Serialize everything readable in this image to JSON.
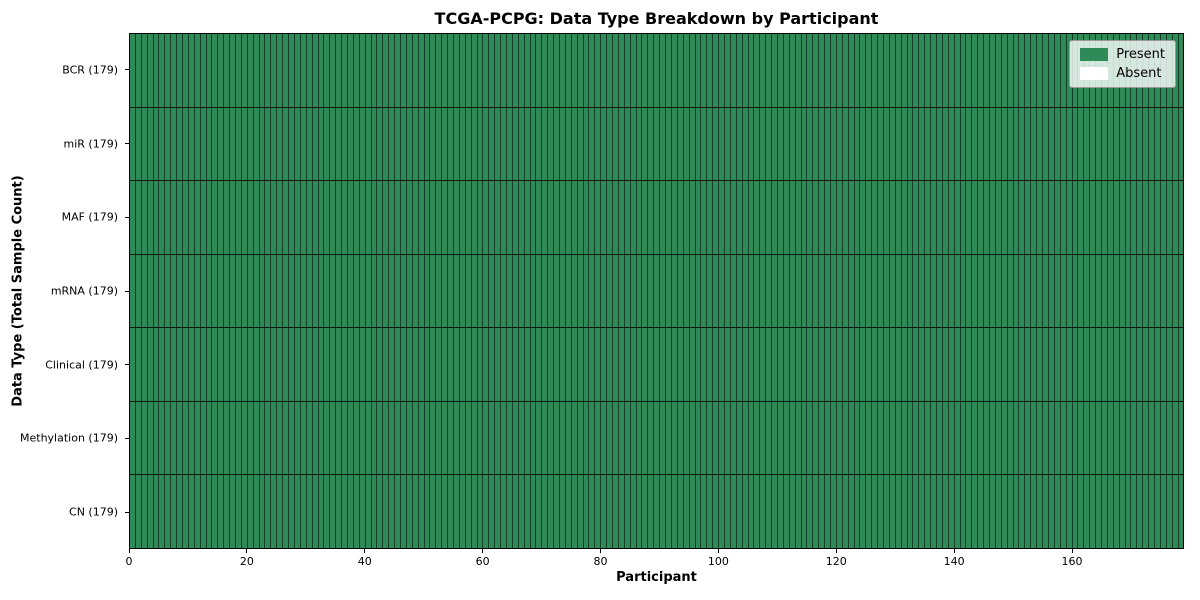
{
  "chart_data": {
    "type": "heatmap",
    "title": "TCGA-PCPG: Data Type Breakdown by Participant",
    "xlabel": "Participant",
    "ylabel": "Data Type (Total Sample Count)",
    "x_range": [
      0,
      179
    ],
    "x_ticks": [
      0,
      20,
      40,
      60,
      80,
      100,
      120,
      140,
      160
    ],
    "n_participants": 179,
    "rows": [
      {
        "label": "BCR",
        "total": 179,
        "tick_label": "BCR (179)",
        "present_count": 179
      },
      {
        "label": "miR",
        "total": 179,
        "tick_label": "miR (179)",
        "present_count": 179
      },
      {
        "label": "MAF",
        "total": 179,
        "tick_label": "MAF (179)",
        "present_count": 179
      },
      {
        "label": "mRNA",
        "total": 179,
        "tick_label": "mRNA (179)",
        "present_count": 179
      },
      {
        "label": "Clinical",
        "total": 179,
        "tick_label": "Clinical (179)",
        "present_count": 179
      },
      {
        "label": "Methylation",
        "total": 179,
        "tick_label": "Methylation (179)",
        "present_count": 179
      },
      {
        "label": "CN",
        "total": 179,
        "tick_label": "CN (179)",
        "present_count": 179
      }
    ],
    "legend": {
      "position": "upper right",
      "entries": [
        {
          "label": "Present",
          "color": "#2e8b57"
        },
        {
          "label": "Absent",
          "color": "#ffffff"
        }
      ]
    },
    "colors": {
      "present": "#2e8b57",
      "absent": "#ffffff",
      "cell_line": "rgba(0,0,0,0.55)",
      "row_line": "#101810",
      "spine": "#000000"
    },
    "grid": true
  }
}
